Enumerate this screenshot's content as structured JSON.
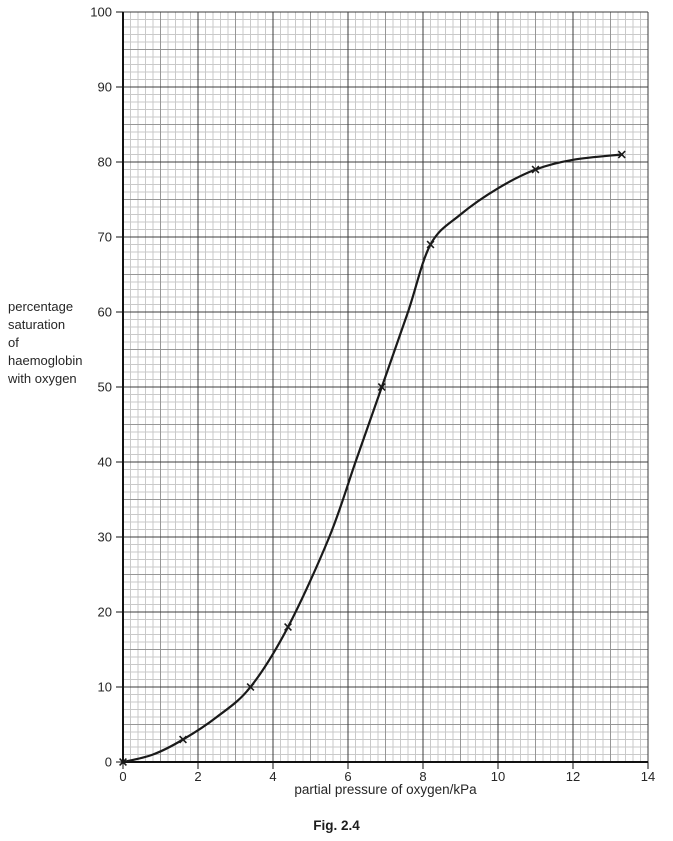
{
  "figure": {
    "caption": "Fig. 2.4"
  },
  "chart_data": {
    "type": "line",
    "title": "",
    "xlabel": "partial pressure of oxygen/kPa",
    "ylabel_lines": [
      "percentage",
      "saturation",
      "of",
      "haemoglobin",
      "with oxygen"
    ],
    "xlim": [
      0,
      14
    ],
    "ylim": [
      0,
      100
    ],
    "x_ticks": [
      0,
      2,
      4,
      6,
      8,
      10,
      12,
      14
    ],
    "y_ticks": [
      0,
      10,
      20,
      30,
      40,
      50,
      60,
      70,
      80,
      90,
      100
    ],
    "grid": {
      "style": "graph-paper",
      "fine_step_x": 0.2,
      "medium_step_x": 1,
      "major_step_x": 2,
      "fine_step_y": 1,
      "medium_step_y": 5,
      "major_step_y": 10
    },
    "legend": "none",
    "marker": "x",
    "points": [
      [
        0,
        0
      ],
      [
        1.6,
        3
      ],
      [
        3.4,
        10
      ],
      [
        4.4,
        18
      ],
      [
        6.9,
        50
      ],
      [
        8.2,
        69
      ],
      [
        11,
        79
      ],
      [
        13.3,
        81
      ]
    ],
    "curve_path_points": [
      [
        0,
        0
      ],
      [
        0.8,
        1
      ],
      [
        1.6,
        3
      ],
      [
        2.5,
        6
      ],
      [
        3.4,
        10
      ],
      [
        4.4,
        18
      ],
      [
        5.5,
        30
      ],
      [
        6.2,
        40
      ],
      [
        6.9,
        50
      ],
      [
        7.6,
        60
      ],
      [
        8.2,
        69
      ],
      [
        9,
        73
      ],
      [
        10,
        76.5
      ],
      [
        11,
        79
      ],
      [
        12,
        80.3
      ],
      [
        13.3,
        81
      ]
    ],
    "colors": {
      "curve": "#1a1a1a",
      "marker": "#1a1a1a",
      "grid_fine": "#c9c9c9",
      "grid_medium": "#979797",
      "grid_major": "#3d3d3d",
      "axis": "#111111",
      "text": "#262626"
    }
  }
}
